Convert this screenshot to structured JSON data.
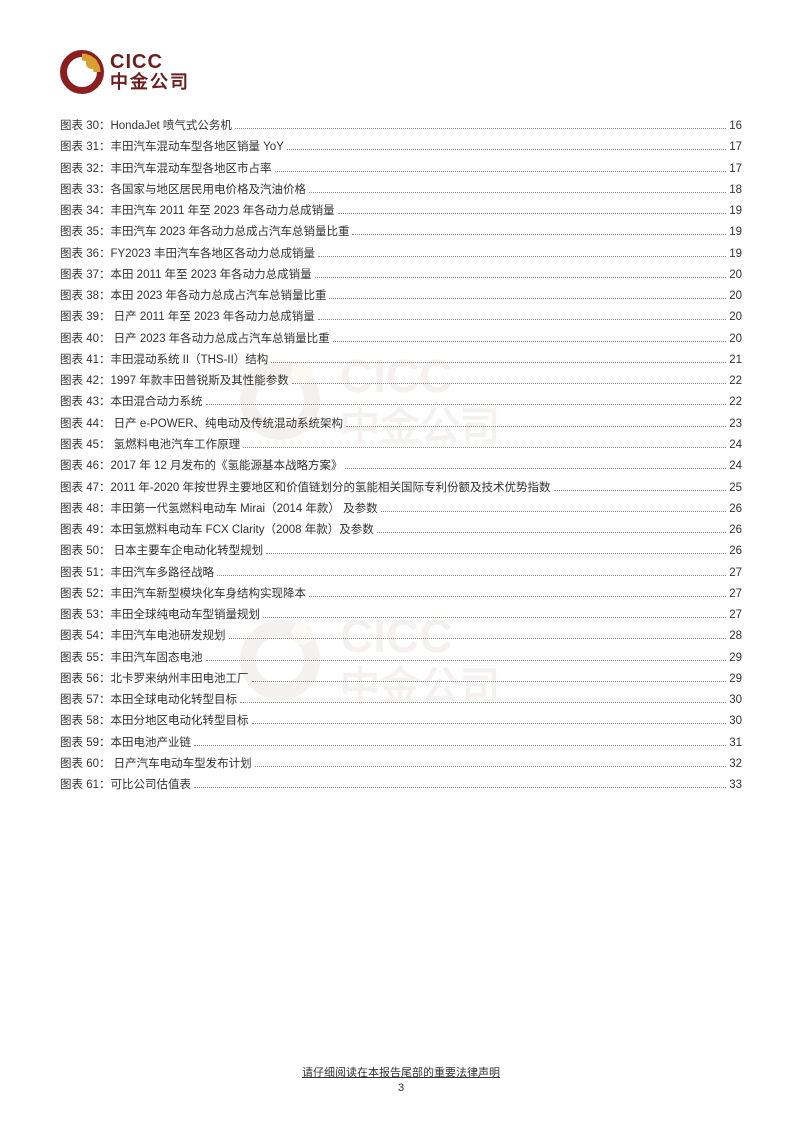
{
  "logo": {
    "en": "CICC",
    "cn": "中金公司",
    "ring_color": "#8a1f1f",
    "accent_color": "#d9a030"
  },
  "watermark": {
    "en": "CICC",
    "cn": "中金公司"
  },
  "toc": {
    "prefix": "图表",
    "entries": [
      {
        "n": 30,
        "title": "HondaJet 喷气式公务机",
        "page": 16
      },
      {
        "n": 31,
        "title": "丰田汽车混动车型各地区销量 YoY",
        "page": 17
      },
      {
        "n": 32,
        "title": "丰田汽车混动车型各地区市占率",
        "page": 17
      },
      {
        "n": 33,
        "title": "各国家与地区居民用电价格及汽油价格",
        "page": 18
      },
      {
        "n": 34,
        "title": "丰田汽车 2011 年至 2023 年各动力总成销量",
        "page": 19
      },
      {
        "n": 35,
        "title": "丰田汽车 2023 年各动力总成占汽车总销量比重",
        "page": 19
      },
      {
        "n": 36,
        "title": "FY2023 丰田汽车各地区各动力总成销量",
        "page": 19
      },
      {
        "n": 37,
        "title": "本田 2011 年至 2023 年各动力总成销量",
        "page": 20
      },
      {
        "n": 38,
        "title": "本田 2023 年各动力总成占汽车总销量比重",
        "page": 20
      },
      {
        "n": 39,
        "title": " 日产 2011 年至 2023 年各动力总成销量",
        "page": 20
      },
      {
        "n": 40,
        "title": " 日产 2023 年各动力总成占汽车总销量比重",
        "page": 20
      },
      {
        "n": 41,
        "title": "丰田混动系统 II（THS-II）结构",
        "page": 21
      },
      {
        "n": 42,
        "title": "1997 年款丰田普锐斯及其性能参数",
        "page": 22
      },
      {
        "n": 43,
        "title": "本田混合动力系统",
        "page": 22
      },
      {
        "n": 44,
        "title": " 日产 e-POWER、纯电动及传统混动系统架构",
        "page": 23
      },
      {
        "n": 45,
        "title": " 氢燃料电池汽车工作原理",
        "page": 24
      },
      {
        "n": 46,
        "title": "2017 年 12 月发布的《氢能源基本战略方案》",
        "page": 24
      },
      {
        "n": 47,
        "title": "2011 年-2020 年按世界主要地区和价值链划分的氢能相关国际专利份额及技术优势指数",
        "page": 25
      },
      {
        "n": 48,
        "title": "丰田第一代氢燃料电动车 Mirai（2014 年款）  及参数",
        "page": 26
      },
      {
        "n": 49,
        "title": "本田氢燃料电动车 FCX Clarity（2008 年款）及参数",
        "page": 26
      },
      {
        "n": 50,
        "title": " 日本主要车企电动化转型规划",
        "page": 26
      },
      {
        "n": 51,
        "title": "丰田汽车多路径战略",
        "page": 27
      },
      {
        "n": 52,
        "title": "丰田汽车新型模块化车身结构实现降本",
        "page": 27
      },
      {
        "n": 53,
        "title": "丰田全球纯电动车型销量规划",
        "page": 27
      },
      {
        "n": 54,
        "title": "丰田汽车电池研发规划",
        "page": 28
      },
      {
        "n": 55,
        "title": "丰田汽车固态电池",
        "page": 29
      },
      {
        "n": 56,
        "title": "北卡罗来纳州丰田电池工厂",
        "page": 29
      },
      {
        "n": 57,
        "title": "本田全球电动化转型目标",
        "page": 30
      },
      {
        "n": 58,
        "title": "本田分地区电动化转型目标",
        "page": 30
      },
      {
        "n": 59,
        "title": "本田电池产业链",
        "page": 31
      },
      {
        "n": 60,
        "title": " 日产汽车电动车型发布计划",
        "page": 32
      },
      {
        "n": 61,
        "title": "可比公司估值表",
        "page": 33
      }
    ]
  },
  "footer": {
    "disclaimer": "请仔细阅读在本报告尾部的重要法律声明",
    "page_number": "3"
  }
}
